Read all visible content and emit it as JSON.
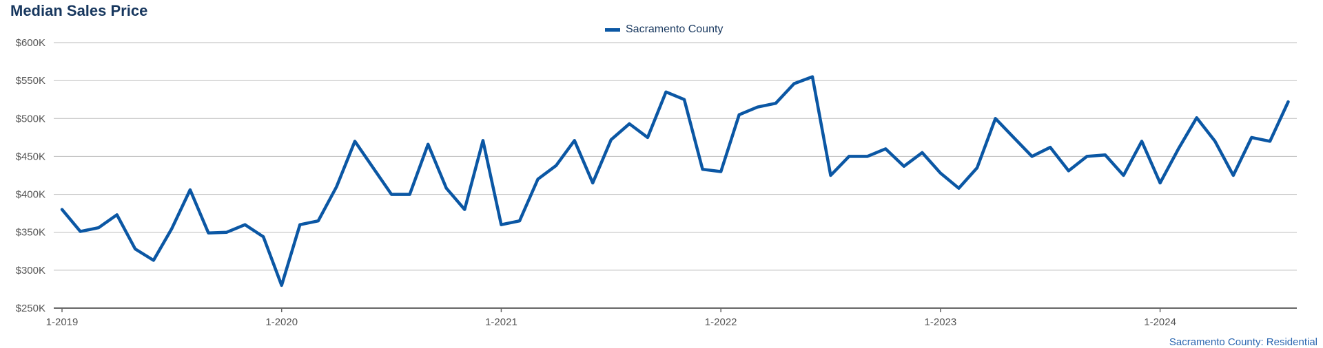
{
  "title": "Median Sales Price",
  "legend": {
    "label": "Sacramento County"
  },
  "source_label": "Sacramento County: Residential",
  "colors": {
    "line": "#0b57a4",
    "title": "#17375e",
    "grid": "#bbbbbb",
    "axis": "#555555"
  },
  "chart_data": {
    "type": "line",
    "title": "Median Sales Price",
    "xlabel": "",
    "ylabel": "",
    "ylim": [
      250000,
      600000
    ],
    "yticks": [
      250000,
      300000,
      350000,
      400000,
      450000,
      500000,
      550000,
      600000
    ],
    "ytick_labels": [
      "$250K",
      "$300K",
      "$350K",
      "$400K",
      "$450K",
      "$500K",
      "$550K",
      "$600K"
    ],
    "xtick_labels": [
      "1-2019",
      "1-2020",
      "1-2021",
      "1-2022",
      "1-2023",
      "1-2024"
    ],
    "x_start": "1-2019",
    "x_end": "8-2024",
    "grid": true,
    "legend_position": "top-center",
    "series": [
      {
        "name": "Sacramento County",
        "x": [
          "1-2019",
          "2-2019",
          "3-2019",
          "4-2019",
          "5-2019",
          "6-2019",
          "7-2019",
          "8-2019",
          "9-2019",
          "10-2019",
          "11-2019",
          "12-2019",
          "1-2020",
          "2-2020",
          "3-2020",
          "4-2020",
          "5-2020",
          "6-2020",
          "7-2020",
          "8-2020",
          "9-2020",
          "10-2020",
          "11-2020",
          "12-2020",
          "1-2021",
          "2-2021",
          "3-2021",
          "4-2021",
          "5-2021",
          "6-2021",
          "7-2021",
          "8-2021",
          "9-2021",
          "10-2021",
          "11-2021",
          "12-2021",
          "1-2022",
          "2-2022",
          "3-2022",
          "4-2022",
          "5-2022",
          "6-2022",
          "7-2022",
          "8-2022",
          "9-2022",
          "10-2022",
          "11-2022",
          "12-2022",
          "1-2023",
          "2-2023",
          "3-2023",
          "4-2023",
          "5-2023",
          "6-2023",
          "7-2023",
          "8-2023",
          "9-2023",
          "10-2023",
          "11-2023",
          "12-2023",
          "1-2024",
          "2-2024",
          "3-2024",
          "4-2024",
          "5-2024",
          "6-2024",
          "7-2024",
          "8-2024"
        ],
        "values": [
          380000,
          351000,
          356000,
          373000,
          328000,
          313000,
          355000,
          406000,
          349000,
          350000,
          360000,
          344000,
          280000,
          360000,
          365000,
          410000,
          470000,
          435000,
          400000,
          400000,
          466000,
          408000,
          380000,
          471000,
          360000,
          365000,
          420000,
          438000,
          471000,
          415000,
          472000,
          493000,
          475000,
          535000,
          525000,
          433000,
          430000,
          505000,
          515000,
          520000,
          546000,
          555000,
          425000,
          450000,
          450000,
          460000,
          437000,
          455000,
          428000,
          408000,
          435000,
          500000,
          475000,
          450000,
          462000,
          431000,
          450000,
          452000,
          425000,
          470000,
          415000,
          460000,
          501000,
          470000,
          425000,
          475000,
          470000,
          522000
        ]
      }
    ]
  }
}
